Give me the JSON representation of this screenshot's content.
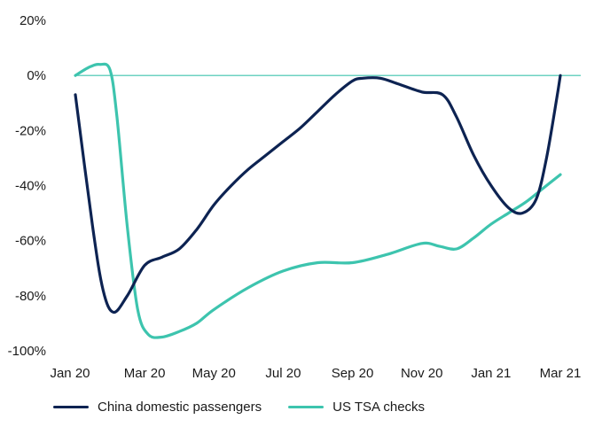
{
  "chart_data": {
    "type": "line",
    "title": "",
    "xlabel": "",
    "ylabel": "",
    "ylim": [
      -100,
      20
    ],
    "yticks": [
      20,
      0,
      -20,
      -40,
      -60,
      -80,
      -100
    ],
    "ytick_labels": [
      "20%",
      "0%",
      "-20%",
      "-40%",
      "-60%",
      "-80%",
      "-100%"
    ],
    "x_ticks": [
      0,
      2,
      4,
      6,
      8,
      10,
      12,
      14
    ],
    "x_tick_labels": [
      "Jan 20",
      "Mar 20",
      "May 20",
      "Jul 20",
      "Sep 20",
      "Nov 20",
      "Jan 21",
      "Mar 21"
    ],
    "xlim": [
      0,
      14
    ],
    "zero_line": true,
    "grid": false,
    "legend_position": "bottom-left",
    "series": [
      {
        "name": "China domestic passengers",
        "color": "#0d2352",
        "x": [
          0,
          0.5,
          0.8,
          1.1,
          1.5,
          2.0,
          2.5,
          3.0,
          3.5,
          4.0,
          4.5,
          5.0,
          5.5,
          6.0,
          6.5,
          7.0,
          7.5,
          8.0,
          8.3,
          8.8,
          9.3,
          10.0,
          10.6,
          11.0,
          11.5,
          12.0,
          12.5,
          12.9,
          13.3,
          13.6,
          13.9,
          14.0
        ],
        "y": [
          -7,
          -55,
          -78,
          -86,
          -80,
          -69,
          -66,
          -63,
          -56,
          -47,
          -40,
          -34,
          -29,
          -24,
          -19,
          -13,
          -7,
          -2,
          -1,
          -1,
          -3,
          -6,
          -7,
          -15,
          -29,
          -40,
          -48,
          -50,
          -45,
          -30,
          -8,
          0
        ]
      },
      {
        "name": "US TSA checks",
        "color": "#3dc4ae",
        "x": [
          0,
          0.4,
          0.7,
          1.0,
          1.2,
          1.5,
          1.8,
          2.1,
          2.5,
          3.0,
          3.5,
          4.0,
          5.0,
          6.0,
          7.0,
          8.0,
          9.0,
          10.0,
          10.5,
          11.0,
          11.5,
          12.0,
          12.5,
          13.0,
          13.5,
          14.0
        ],
        "y": [
          0,
          3,
          4,
          2,
          -15,
          -55,
          -85,
          -94,
          -95,
          -93,
          -90,
          -85,
          -77,
          -71,
          -68,
          -68,
          -65,
          -61,
          -62,
          -63,
          -59,
          -54,
          -50,
          -46,
          -41,
          -36
        ]
      }
    ]
  }
}
